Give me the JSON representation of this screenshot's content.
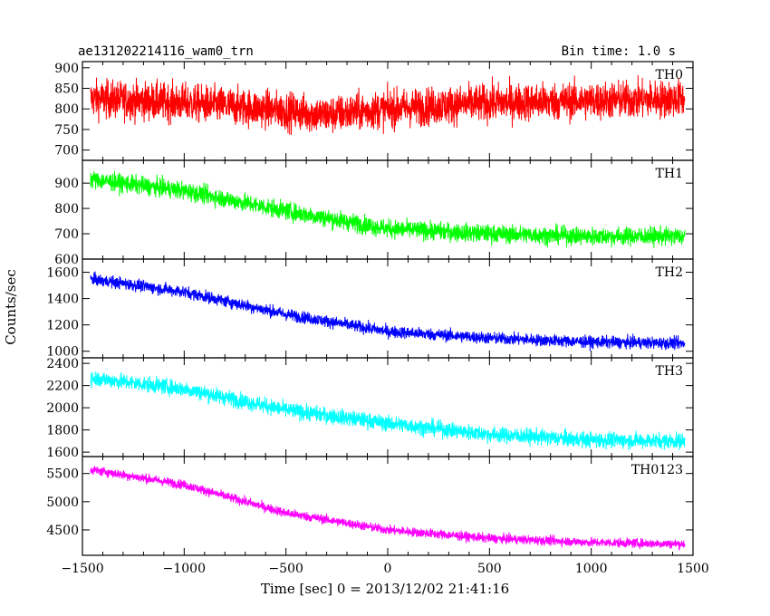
{
  "header": {
    "file_name": "ae131202214116_wam0_trn",
    "bin_time": "Bin time: 1.0 s"
  },
  "chart_data": {
    "type": "line",
    "xlabel": "Time [sec] 0 = 2013/12/02 21:41:16",
    "ylabel": "Counts/sec",
    "xlim": [
      -1500,
      1500
    ],
    "x_ticks": [
      -1500,
      -1000,
      -500,
      0,
      500,
      1000,
      1500
    ],
    "x_tick_labels": [
      "−1500",
      "−1000",
      "−500",
      "0",
      "500",
      "1000",
      "1500"
    ],
    "data_range": [
      -1460,
      1460
    ],
    "panels": [
      {
        "name": "TH0",
        "color": "#ff0000",
        "ylim": [
          675,
          915
        ],
        "y_ticks": [
          700,
          750,
          800,
          850,
          900
        ],
        "x_keys": [
          -1460,
          -1000,
          -600,
          -300,
          0,
          500,
          1000,
          1460
        ],
        "y_keys": [
          825,
          815,
          800,
          785,
          800,
          815,
          820,
          825
        ],
        "noise": 45
      },
      {
        "name": "TH1",
        "color": "#00ff00",
        "ylim": [
          600,
          990
        ],
        "y_ticks": [
          600,
          700,
          800,
          900
        ],
        "x_keys": [
          -1460,
          -1000,
          -500,
          0,
          500,
          1000,
          1460
        ],
        "y_keys": [
          915,
          870,
          790,
          720,
          700,
          690,
          690
        ],
        "noise": 35
      },
      {
        "name": "TH2",
        "color": "#0000ff",
        "ylim": [
          950,
          1700
        ],
        "y_ticks": [
          1000,
          1200,
          1400,
          1600
        ],
        "x_keys": [
          -1460,
          -1000,
          -500,
          0,
          500,
          1000,
          1460
        ],
        "y_keys": [
          1550,
          1450,
          1280,
          1150,
          1100,
          1070,
          1060
        ],
        "noise": 45
      },
      {
        "name": "TH3",
        "color": "#00ffff",
        "ylim": [
          1560,
          2450
        ],
        "y_ticks": [
          1600,
          1800,
          2000,
          2200,
          2400
        ],
        "x_keys": [
          -1460,
          -1000,
          -500,
          0,
          500,
          1000,
          1460
        ],
        "y_keys": [
          2270,
          2170,
          1980,
          1860,
          1760,
          1710,
          1700
        ],
        "noise": 70
      },
      {
        "name": "TH0123",
        "color": "#ff00ff",
        "ylim": [
          4050,
          5800
        ],
        "y_ticks": [
          4500,
          5000,
          5500
        ],
        "x_keys": [
          -1460,
          -1000,
          -500,
          0,
          500,
          1000,
          1460
        ],
        "y_keys": [
          5570,
          5300,
          4800,
          4500,
          4350,
          4280,
          4250
        ],
        "noise": 80
      }
    ]
  }
}
